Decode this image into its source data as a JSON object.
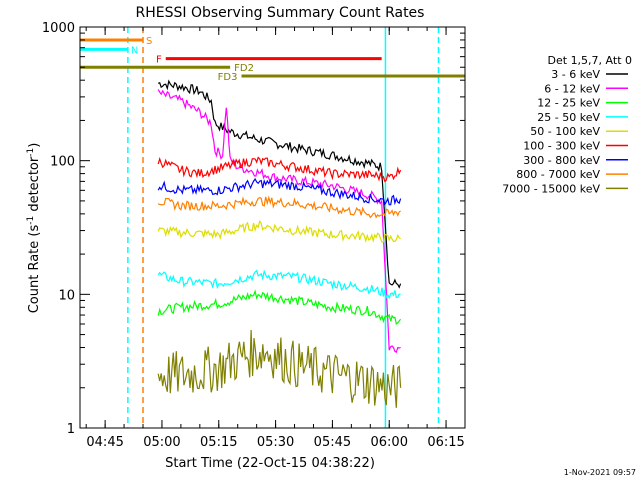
{
  "chart_data": {
    "type": "line",
    "title": "RHESSI Observing Summary Count Rates",
    "xlabel": "Start Time (22-Oct-15 04:38:22)",
    "ylabel": "Count Rate (s⁻¹ detector⁻¹)",
    "ylabel_main": "Count Rate (s",
    "ylabel_sup1": "-1",
    "ylabel_mid": " detector",
    "ylabel_sup2": "-1",
    "ylabel_end": ")",
    "yscale": "log",
    "ylim": [
      1,
      1000
    ],
    "xlim": [
      "04:38:22",
      "06:20:00"
    ],
    "x_ticks": [
      "04:45",
      "05:00",
      "05:15",
      "05:30",
      "05:45",
      "06:00",
      "06:15"
    ],
    "y_ticks": [
      "1",
      "10",
      "100",
      "1000"
    ],
    "legend_title": "Det 1,5,7, Att 0",
    "legend_position": "right",
    "timestamp": "1-Nov-2021 09:57",
    "series": [
      {
        "name": "3 - 6 keV",
        "color": "#000000",
        "x": [
          "04:59",
          "05:05",
          "05:10",
          "05:13",
          "05:14",
          "05:18",
          "05:25",
          "05:35",
          "05:45",
          "05:55",
          "05:58",
          "06:00",
          "06:03"
        ],
        "values": [
          380,
          360,
          330,
          280,
          190,
          165,
          145,
          125,
          110,
          95,
          90,
          12,
          12
        ]
      },
      {
        "name": "6 - 12 keV",
        "color": "#ff00ff",
        "x": [
          "04:59",
          "05:05",
          "05:10",
          "05:13",
          "05:14",
          "05:16",
          "05:17",
          "05:18",
          "05:20",
          "05:30",
          "05:45",
          "05:55",
          "05:58",
          "06:00",
          "06:03"
        ],
        "values": [
          320,
          280,
          230,
          190,
          120,
          110,
          260,
          100,
          90,
          75,
          65,
          55,
          50,
          4,
          4
        ]
      },
      {
        "name": "12 - 25 keV",
        "color": "#00ff00",
        "x": [
          "04:59",
          "05:05",
          "05:15",
          "05:25",
          "05:35",
          "05:45",
          "05:55",
          "06:00",
          "06:03"
        ],
        "values": [
          7.5,
          8,
          8.5,
          10,
          9,
          8,
          7.5,
          6.5,
          6.5
        ]
      },
      {
        "name": "25 - 50 keV",
        "color": "#00ffff",
        "x": [
          "04:59",
          "05:05",
          "05:15",
          "05:25",
          "05:35",
          "05:45",
          "05:55",
          "06:00",
          "06:03"
        ],
        "values": [
          14,
          12.5,
          12,
          14,
          13.5,
          12,
          11,
          10,
          10
        ]
      },
      {
        "name": "50 - 100 keV",
        "color": "#dddd00",
        "x": [
          "04:59",
          "05:05",
          "05:15",
          "05:25",
          "05:35",
          "05:45",
          "05:55",
          "06:00",
          "06:03"
        ],
        "values": [
          30,
          29,
          28,
          33,
          30,
          28,
          27,
          26,
          26
        ]
      },
      {
        "name": "100 - 300 keV",
        "color": "#ff0000",
        "x": [
          "04:59",
          "05:05",
          "05:10",
          "05:20",
          "05:25",
          "05:35",
          "05:45",
          "05:55",
          "06:00",
          "06:03"
        ],
        "values": [
          100,
          85,
          80,
          95,
          100,
          90,
          80,
          78,
          75,
          85
        ]
      },
      {
        "name": "300 - 800 keV",
        "color": "#0000ff",
        "x": [
          "04:59",
          "05:05",
          "05:15",
          "05:25",
          "05:35",
          "05:45",
          "05:55",
          "06:00",
          "06:03"
        ],
        "values": [
          65,
          60,
          60,
          68,
          65,
          58,
          52,
          50,
          52
        ]
      },
      {
        "name": "800 - 7000 keV",
        "color": "#ff8000",
        "x": [
          "04:59",
          "05:05",
          "05:15",
          "05:25",
          "05:35",
          "05:45",
          "05:55",
          "06:00",
          "06:03"
        ],
        "values": [
          50,
          46,
          46,
          50,
          48,
          44,
          40,
          40,
          42
        ]
      },
      {
        "name": "7000 - 15000 keV",
        "color": "#808000",
        "x": [
          "04:59",
          "05:05",
          "05:15",
          "05:22",
          "05:27",
          "05:35",
          "05:45",
          "05:55",
          "06:00",
          "06:03"
        ],
        "values": [
          2.5,
          2.5,
          2.8,
          3.5,
          3.8,
          3.0,
          2.5,
          2.2,
          2.0,
          2.0
        ]
      }
    ],
    "annotations": [
      {
        "label": "S",
        "color": "#ff8000",
        "x_start": "04:38:22",
        "x_end": "04:55",
        "value": 800
      },
      {
        "label": "N",
        "color": "#00ffff",
        "x_start": "04:38:22",
        "x_end": "04:51",
        "value": 680
      },
      {
        "label": "F",
        "color": "#ff0000",
        "x_start": "05:01",
        "x_end": "05:58",
        "value": 580
      },
      {
        "label": "FD2",
        "color": "#808000",
        "x_start": "04:38:22",
        "x_end": "05:18",
        "value": 500
      },
      {
        "label": "FD3",
        "color": "#808000",
        "x_start": "05:21",
        "x_end": "06:20",
        "value": 430
      }
    ],
    "vertical_lines": [
      {
        "x": "04:51",
        "color": "#00ffff",
        "style": "dashed"
      },
      {
        "x": "04:55",
        "color": "#ff8000",
        "style": "dashed"
      },
      {
        "x": "05:59",
        "color": "#00ffff",
        "style": "solid"
      },
      {
        "x": "06:13",
        "color": "#00ffff",
        "style": "dashed"
      }
    ]
  }
}
